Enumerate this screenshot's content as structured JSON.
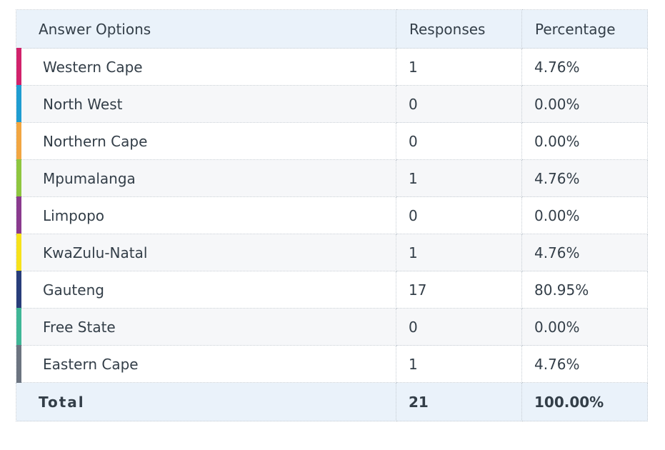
{
  "header": {
    "col_option": "Answer Options",
    "col_responses": "Responses",
    "col_percentage": "Percentage"
  },
  "rows": [
    {
      "label": "Western Cape",
      "responses": "1",
      "percentage": "4.76%",
      "color": "#d1226b"
    },
    {
      "label": "North West",
      "responses": "0",
      "percentage": "0.00%",
      "color": "#1f9dd1"
    },
    {
      "label": "Northern Cape",
      "responses": "0",
      "percentage": "0.00%",
      "color": "#f2a641"
    },
    {
      "label": "Mpumalanga",
      "responses": "1",
      "percentage": "4.76%",
      "color": "#8ec63f"
    },
    {
      "label": "Limpopo",
      "responses": "0",
      "percentage": "0.00%",
      "color": "#8a3a8e"
    },
    {
      "label": "KwaZulu-Natal",
      "responses": "1",
      "percentage": "4.76%",
      "color": "#f7e21b"
    },
    {
      "label": "Gauteng",
      "responses": "17",
      "percentage": "80.95%",
      "color": "#283d7a"
    },
    {
      "label": "Free State",
      "responses": "0",
      "percentage": "0.00%",
      "color": "#3fb696"
    },
    {
      "label": "Eastern Cape",
      "responses": "1",
      "percentage": "4.76%",
      "color": "#6c7480"
    }
  ],
  "total": {
    "label": "Total",
    "responses": "21",
    "percentage": "100.00%"
  }
}
